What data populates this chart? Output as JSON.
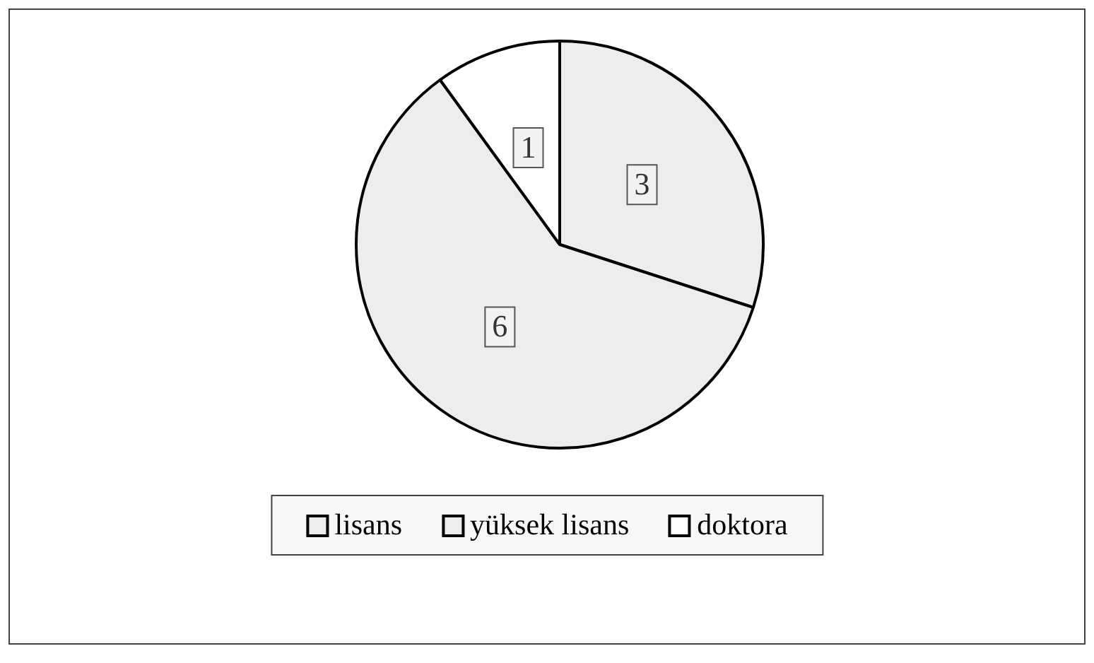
{
  "chart_data": {
    "type": "pie",
    "categories": [
      "lisans",
      "yüksek lisans",
      "doktora"
    ],
    "values": [
      3,
      6,
      1
    ],
    "colors": [
      "#ededed",
      "#ededed",
      "#ffffff"
    ],
    "data_labels": true,
    "legend": "bottom"
  }
}
